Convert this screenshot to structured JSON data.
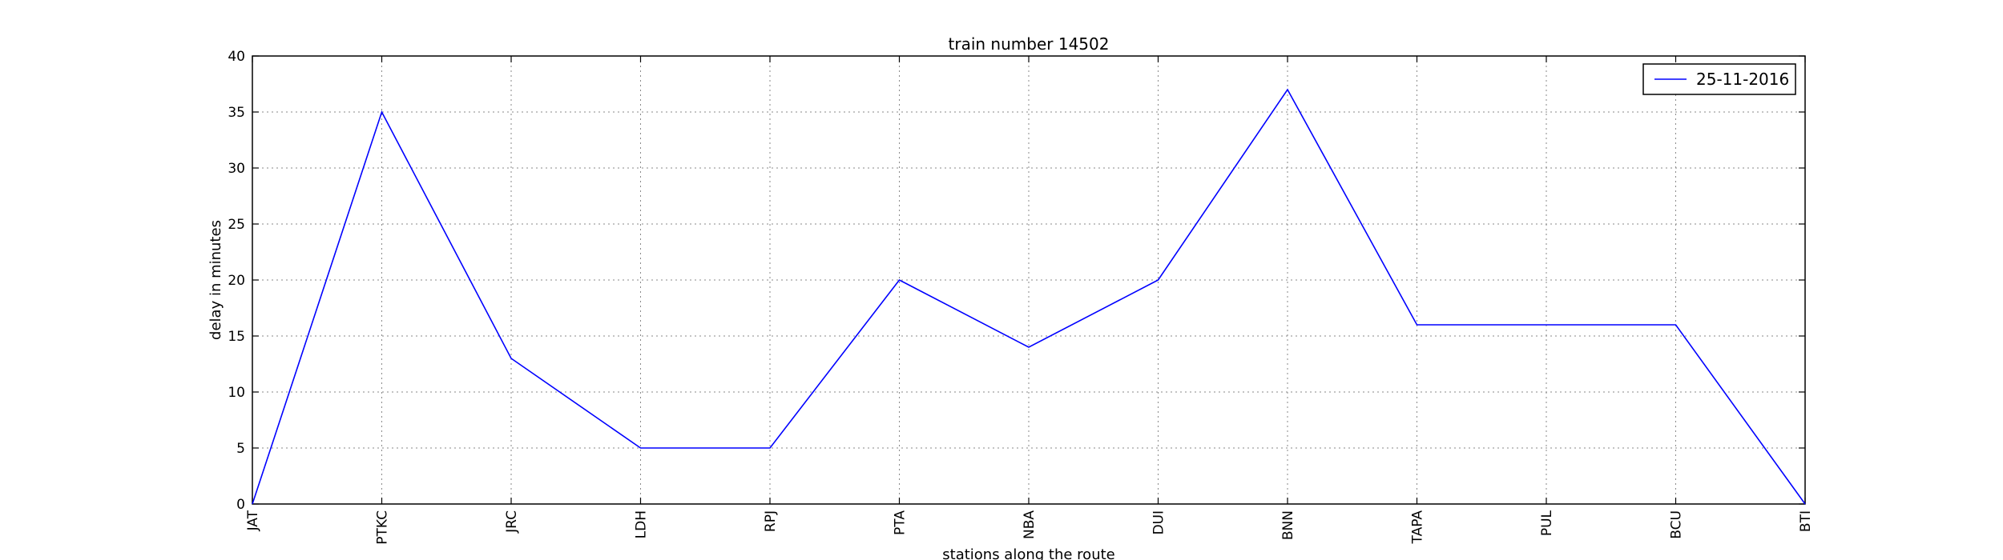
{
  "chart_data": {
    "type": "line",
    "title": "train number 14502",
    "xlabel": "stations along the route",
    "ylabel": "delay in minutes",
    "categories": [
      "JAT",
      "PTKC",
      "JRC",
      "LDH",
      "RPJ",
      "PTA",
      "NBA",
      "DUI",
      "BNN",
      "TAPA",
      "PUL",
      "BCU",
      "BTI"
    ],
    "series": [
      {
        "name": "25-11-2016",
        "color": "#0000ff",
        "values": [
          0,
          35,
          13,
          5,
          5,
          20,
          14,
          20,
          37,
          16,
          16,
          16,
          0
        ]
      }
    ],
    "ylim": [
      0,
      40
    ],
    "yticks": [
      "0",
      "5",
      "10",
      "15",
      "20",
      "25",
      "30",
      "35",
      "40"
    ],
    "grid": true,
    "legend_position": "top-right"
  }
}
